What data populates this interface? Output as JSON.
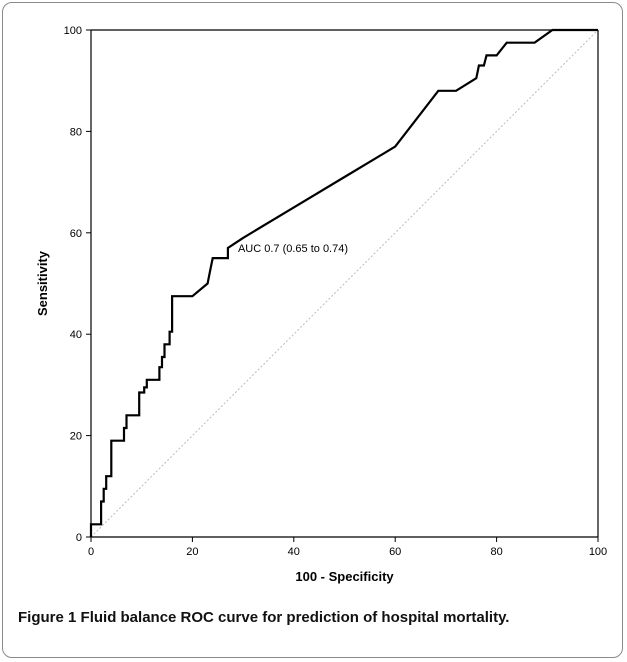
{
  "caption": {
    "label": "Figure 1",
    "text": "Fluid balance ROC curve for prediction of hospital mortality."
  },
  "chart_data": {
    "type": "line",
    "xlabel": "100 - Specificity",
    "ylabel": "Sensitivity",
    "xlim": [
      0,
      100
    ],
    "ylim": [
      0,
      100
    ],
    "xticks": [
      0,
      20,
      40,
      60,
      80,
      100
    ],
    "yticks": [
      0,
      20,
      40,
      60,
      80,
      100
    ],
    "grid": false,
    "annotation": {
      "text": "AUC 0.7 (0.65 to 0.74)",
      "x": 28,
      "y": 57
    },
    "reference_line": {
      "style": "dotted",
      "color": "#bdbdbd",
      "from": [
        0,
        0
      ],
      "to": [
        100,
        100
      ]
    },
    "series": [
      {
        "color": "#000000",
        "points": [
          [
            0,
            0
          ],
          [
            0,
            2.5
          ],
          [
            2,
            2.5
          ],
          [
            2,
            7
          ],
          [
            2.5,
            7
          ],
          [
            2.5,
            9.5
          ],
          [
            3,
            9.5
          ],
          [
            3,
            12
          ],
          [
            4,
            12
          ],
          [
            4,
            19
          ],
          [
            6.5,
            19
          ],
          [
            6.5,
            21.5
          ],
          [
            7,
            21.5
          ],
          [
            7,
            24
          ],
          [
            9.5,
            24
          ],
          [
            9.5,
            28.5
          ],
          [
            10.5,
            28.5
          ],
          [
            10.5,
            29.5
          ],
          [
            11,
            29.5
          ],
          [
            11,
            31
          ],
          [
            13.5,
            31
          ],
          [
            13.5,
            33.5
          ],
          [
            14,
            33.5
          ],
          [
            14,
            35.5
          ],
          [
            14.5,
            35.5
          ],
          [
            14.5,
            38
          ],
          [
            15.5,
            38
          ],
          [
            15.5,
            40.5
          ],
          [
            16,
            40.5
          ],
          [
            16,
            47.5
          ],
          [
            20,
            47.5
          ],
          [
            23,
            50
          ],
          [
            23.5,
            52.5
          ],
          [
            24,
            55
          ],
          [
            27,
            55
          ],
          [
            27,
            57
          ],
          [
            30,
            59
          ],
          [
            40,
            65
          ],
          [
            50,
            71
          ],
          [
            60,
            77
          ],
          [
            68.5,
            88
          ],
          [
            72,
            88
          ],
          [
            76,
            90.5
          ],
          [
            76.5,
            93
          ],
          [
            77.5,
            93
          ],
          [
            78,
            95
          ],
          [
            80,
            95
          ],
          [
            82,
            97.5
          ],
          [
            87.5,
            97.5
          ],
          [
            91,
            100
          ],
          [
            100,
            100
          ]
        ]
      }
    ]
  }
}
